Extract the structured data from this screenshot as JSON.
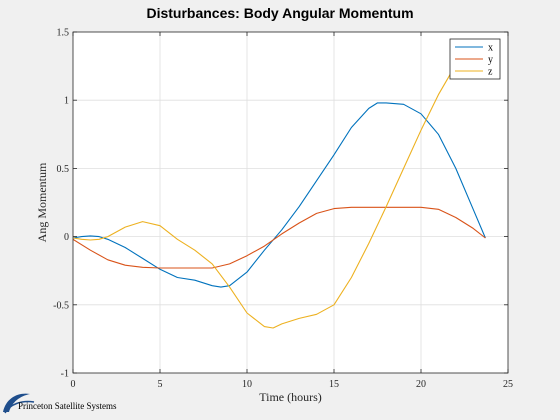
{
  "chart_data": {
    "type": "line",
    "title": "Disturbances: Body Angular Momentum",
    "xlabel": "Time (hours)",
    "ylabel": "Ang Momentum",
    "xlim": [
      0,
      25
    ],
    "ylim": [
      -1,
      1.5
    ],
    "xticks": [
      0,
      5,
      10,
      15,
      20,
      25
    ],
    "yticks": [
      -1,
      -0.5,
      0,
      0.5,
      1,
      1.5
    ],
    "xtick_labels": [
      "0",
      "5",
      "10",
      "15",
      "20",
      "25"
    ],
    "ytick_labels": [
      "-1",
      "-0.5",
      "0",
      "0.5",
      "1",
      "1.5"
    ],
    "grid": true,
    "legend_position": "top-right",
    "series": [
      {
        "name": "x",
        "color": "#0072bd",
        "x": [
          0,
          0.5,
          1,
          1.5,
          2,
          3,
          4,
          5,
          6,
          7,
          8,
          8.5,
          9,
          10,
          11,
          12,
          13,
          14,
          15,
          16,
          17,
          17.5,
          18,
          19,
          20,
          21,
          22,
          23,
          23.7
        ],
        "y": [
          -0.01,
          0.0,
          0.005,
          0.0,
          -0.02,
          -0.08,
          -0.16,
          -0.24,
          -0.3,
          -0.32,
          -0.36,
          -0.37,
          -0.36,
          -0.26,
          -0.1,
          0.05,
          0.22,
          0.41,
          0.6,
          0.8,
          0.94,
          0.98,
          0.98,
          0.97,
          0.9,
          0.75,
          0.5,
          0.2,
          -0.01
        ]
      },
      {
        "name": "y",
        "color": "#d95319",
        "x": [
          0,
          1,
          2,
          3,
          4,
          5,
          6,
          7,
          8,
          9,
          10,
          11,
          12,
          13,
          14,
          15,
          16,
          17,
          18,
          19,
          20,
          21,
          22,
          23,
          23.7
        ],
        "y": [
          -0.02,
          -0.1,
          -0.17,
          -0.21,
          -0.225,
          -0.23,
          -0.23,
          -0.23,
          -0.23,
          -0.2,
          -0.14,
          -0.07,
          0.02,
          0.1,
          0.17,
          0.205,
          0.215,
          0.215,
          0.215,
          0.215,
          0.215,
          0.2,
          0.14,
          0.06,
          -0.01
        ]
      },
      {
        "name": "z",
        "color": "#edb120",
        "x": [
          0,
          0.5,
          1,
          1.5,
          2,
          3,
          4,
          5,
          6,
          7,
          8,
          9,
          10,
          11,
          11.5,
          12,
          13,
          14,
          15,
          16,
          17,
          18,
          19,
          20,
          21,
          22,
          22.8
        ],
        "y": [
          -0.01,
          -0.02,
          -0.025,
          -0.02,
          0.0,
          0.07,
          0.11,
          0.08,
          -0.02,
          -0.1,
          -0.2,
          -0.37,
          -0.56,
          -0.66,
          -0.67,
          -0.64,
          -0.6,
          -0.57,
          -0.5,
          -0.3,
          -0.05,
          0.22,
          0.5,
          0.78,
          1.04,
          1.26,
          1.42
        ]
      }
    ]
  },
  "footer": {
    "logo_text": "Princeton Satellite Systems"
  }
}
